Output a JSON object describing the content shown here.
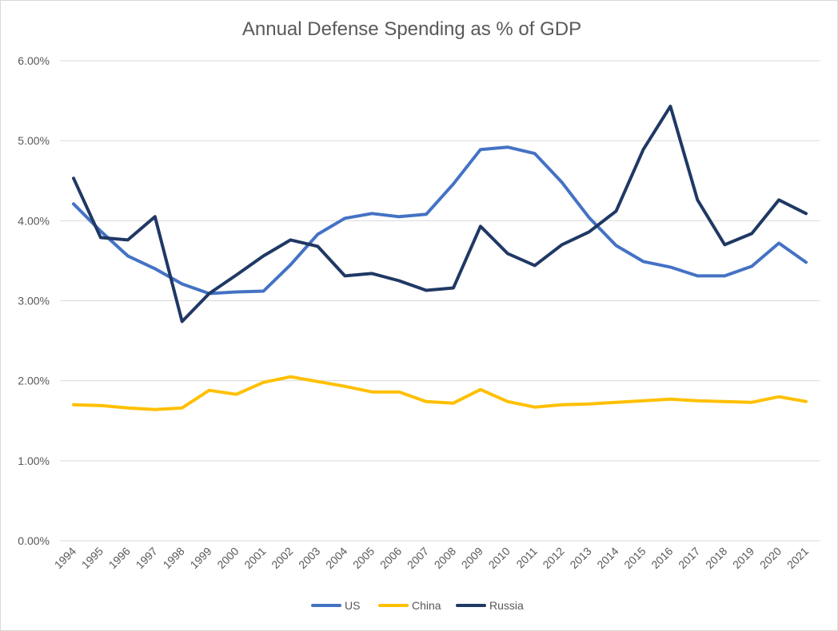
{
  "chart_data": {
    "type": "line",
    "title": "Annual Defense Spending as % of GDP",
    "xlabel": "",
    "ylabel": "",
    "ylim": [
      0,
      6
    ],
    "ytick_labels": [
      "0.00%",
      "1.00%",
      "2.00%",
      "3.00%",
      "4.00%",
      "5.00%",
      "6.00%"
    ],
    "grid": true,
    "legend_position": "bottom",
    "categories": [
      "1994",
      "1995",
      "1996",
      "1997",
      "1998",
      "1999",
      "2000",
      "2001",
      "2002",
      "2003",
      "2004",
      "2005",
      "2006",
      "2007",
      "2008",
      "2009",
      "2010",
      "2011",
      "2012",
      "2013",
      "2014",
      "2015",
      "2016",
      "2017",
      "2018",
      "2019",
      "2020",
      "2021"
    ],
    "series": [
      {
        "name": "US",
        "color": "#4472c4",
        "values": [
          4.21,
          3.87,
          3.56,
          3.4,
          3.21,
          3.09,
          3.11,
          3.12,
          3.45,
          3.83,
          4.03,
          4.09,
          4.05,
          4.08,
          4.46,
          4.89,
          4.92,
          4.84,
          4.48,
          4.04,
          3.69,
          3.49,
          3.42,
          3.31,
          3.31,
          3.43,
          3.72,
          3.48
        ]
      },
      {
        "name": "China",
        "color": "#ffc000",
        "values": [
          1.7,
          1.69,
          1.66,
          1.64,
          1.66,
          1.88,
          1.83,
          1.98,
          2.05,
          1.99,
          1.93,
          1.86,
          1.86,
          1.74,
          1.72,
          1.89,
          1.74,
          1.67,
          1.7,
          1.71,
          1.73,
          1.75,
          1.77,
          1.75,
          1.74,
          1.73,
          1.8,
          1.74
        ]
      },
      {
        "name": "Russia",
        "color": "#203864",
        "values": [
          4.53,
          3.79,
          3.76,
          4.05,
          2.74,
          3.09,
          3.32,
          3.56,
          3.76,
          3.68,
          3.31,
          3.34,
          3.25,
          3.13,
          3.16,
          3.93,
          3.59,
          3.44,
          3.7,
          3.86,
          4.12,
          4.89,
          5.43,
          4.26,
          3.7,
          3.84,
          4.26,
          4.09
        ]
      }
    ]
  }
}
